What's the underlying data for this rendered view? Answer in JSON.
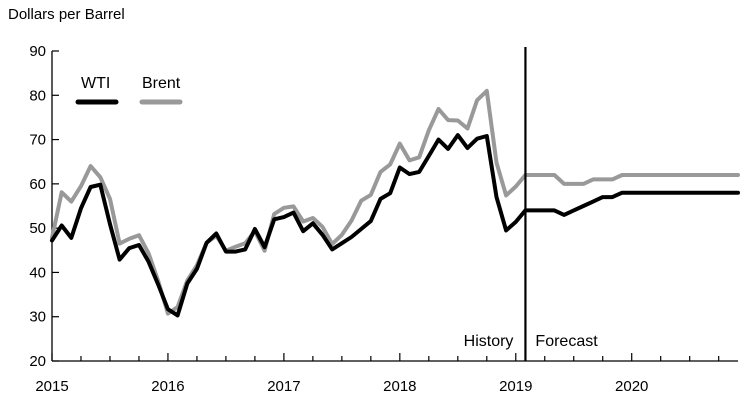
{
  "chart_data": {
    "type": "line",
    "title": "",
    "ylabel": "Dollars per Barrel",
    "xlabel": "",
    "ylim": [
      20,
      90
    ],
    "yticks": [
      20,
      30,
      40,
      50,
      60,
      70,
      80,
      90
    ],
    "xlim": [
      "2015-01",
      "2020-12"
    ],
    "xtick_labels": [
      "2015",
      "2016",
      "2017",
      "2018",
      "2019",
      "2020"
    ],
    "grid": false,
    "legend": {
      "placement": "top-left"
    },
    "divider": {
      "date": "2019-02",
      "left_label": "History",
      "right_label": "Forecast"
    },
    "series": [
      {
        "name": "WTI",
        "color": "#000000",
        "values": [
          {
            "x": "2015-01",
            "y": 47.2
          },
          {
            "x": "2015-02",
            "y": 50.6
          },
          {
            "x": "2015-03",
            "y": 47.8
          },
          {
            "x": "2015-04",
            "y": 54.5
          },
          {
            "x": "2015-05",
            "y": 59.3
          },
          {
            "x": "2015-06",
            "y": 59.8
          },
          {
            "x": "2015-07",
            "y": 50.9
          },
          {
            "x": "2015-08",
            "y": 42.9
          },
          {
            "x": "2015-09",
            "y": 45.5
          },
          {
            "x": "2015-10",
            "y": 46.2
          },
          {
            "x": "2015-11",
            "y": 42.4
          },
          {
            "x": "2015-12",
            "y": 37.2
          },
          {
            "x": "2016-01",
            "y": 31.7
          },
          {
            "x": "2016-02",
            "y": 30.3
          },
          {
            "x": "2016-03",
            "y": 37.5
          },
          {
            "x": "2016-04",
            "y": 40.8
          },
          {
            "x": "2016-05",
            "y": 46.7
          },
          {
            "x": "2016-06",
            "y": 48.8
          },
          {
            "x": "2016-07",
            "y": 44.7
          },
          {
            "x": "2016-08",
            "y": 44.7
          },
          {
            "x": "2016-09",
            "y": 45.2
          },
          {
            "x": "2016-10",
            "y": 49.8
          },
          {
            "x": "2016-11",
            "y": 45.7
          },
          {
            "x": "2016-12",
            "y": 52.0
          },
          {
            "x": "2017-01",
            "y": 52.5
          },
          {
            "x": "2017-02",
            "y": 53.5
          },
          {
            "x": "2017-03",
            "y": 49.3
          },
          {
            "x": "2017-04",
            "y": 51.1
          },
          {
            "x": "2017-05",
            "y": 48.5
          },
          {
            "x": "2017-06",
            "y": 45.2
          },
          {
            "x": "2017-07",
            "y": 46.6
          },
          {
            "x": "2017-08",
            "y": 48.0
          },
          {
            "x": "2017-09",
            "y": 49.8
          },
          {
            "x": "2017-10",
            "y": 51.6
          },
          {
            "x": "2017-11",
            "y": 56.6
          },
          {
            "x": "2017-12",
            "y": 57.9
          },
          {
            "x": "2018-01",
            "y": 63.7
          },
          {
            "x": "2018-02",
            "y": 62.2
          },
          {
            "x": "2018-03",
            "y": 62.7
          },
          {
            "x": "2018-04",
            "y": 66.3
          },
          {
            "x": "2018-05",
            "y": 70.0
          },
          {
            "x": "2018-06",
            "y": 67.9
          },
          {
            "x": "2018-07",
            "y": 71.0
          },
          {
            "x": "2018-08",
            "y": 68.1
          },
          {
            "x": "2018-09",
            "y": 70.2
          },
          {
            "x": "2018-10",
            "y": 70.8
          },
          {
            "x": "2018-11",
            "y": 57.0
          },
          {
            "x": "2018-12",
            "y": 49.5
          },
          {
            "x": "2019-01",
            "y": 51.4
          },
          {
            "x": "2019-02",
            "y": 54.0
          },
          {
            "x": "2019-03",
            "y": 54.0
          },
          {
            "x": "2019-04",
            "y": 54.0
          },
          {
            "x": "2019-05",
            "y": 54.0
          },
          {
            "x": "2019-06",
            "y": 53.0
          },
          {
            "x": "2019-07",
            "y": 54.0
          },
          {
            "x": "2019-08",
            "y": 55.0
          },
          {
            "x": "2019-09",
            "y": 56.0
          },
          {
            "x": "2019-10",
            "y": 57.0
          },
          {
            "x": "2019-11",
            "y": 57.0
          },
          {
            "x": "2019-12",
            "y": 58.0
          },
          {
            "x": "2020-01",
            "y": 58.0
          },
          {
            "x": "2020-02",
            "y": 58.0
          },
          {
            "x": "2020-03",
            "y": 58.0
          },
          {
            "x": "2020-04",
            "y": 58.0
          },
          {
            "x": "2020-05",
            "y": 58.0
          },
          {
            "x": "2020-06",
            "y": 58.0
          },
          {
            "x": "2020-07",
            "y": 58.0
          },
          {
            "x": "2020-08",
            "y": 58.0
          },
          {
            "x": "2020-09",
            "y": 58.0
          },
          {
            "x": "2020-10",
            "y": 58.0
          },
          {
            "x": "2020-11",
            "y": 58.0
          },
          {
            "x": "2020-12",
            "y": 58.0
          }
        ]
      },
      {
        "name": "Brent",
        "color": "#999999",
        "values": [
          {
            "x": "2015-01",
            "y": 47.8
          },
          {
            "x": "2015-02",
            "y": 58.1
          },
          {
            "x": "2015-03",
            "y": 56.0
          },
          {
            "x": "2015-04",
            "y": 59.5
          },
          {
            "x": "2015-05",
            "y": 64.0
          },
          {
            "x": "2015-06",
            "y": 61.5
          },
          {
            "x": "2015-07",
            "y": 56.6
          },
          {
            "x": "2015-08",
            "y": 46.5
          },
          {
            "x": "2015-09",
            "y": 47.6
          },
          {
            "x": "2015-10",
            "y": 48.4
          },
          {
            "x": "2015-11",
            "y": 44.3
          },
          {
            "x": "2015-12",
            "y": 38.0
          },
          {
            "x": "2016-01",
            "y": 30.7
          },
          {
            "x": "2016-02",
            "y": 32.2
          },
          {
            "x": "2016-03",
            "y": 38.2
          },
          {
            "x": "2016-04",
            "y": 41.6
          },
          {
            "x": "2016-05",
            "y": 46.7
          },
          {
            "x": "2016-06",
            "y": 48.3
          },
          {
            "x": "2016-07",
            "y": 44.9
          },
          {
            "x": "2016-08",
            "y": 45.8
          },
          {
            "x": "2016-09",
            "y": 46.6
          },
          {
            "x": "2016-10",
            "y": 49.3
          },
          {
            "x": "2016-11",
            "y": 44.9
          },
          {
            "x": "2016-12",
            "y": 53.2
          },
          {
            "x": "2017-01",
            "y": 54.6
          },
          {
            "x": "2017-02",
            "y": 54.9
          },
          {
            "x": "2017-03",
            "y": 51.5
          },
          {
            "x": "2017-04",
            "y": 52.3
          },
          {
            "x": "2017-05",
            "y": 50.3
          },
          {
            "x": "2017-06",
            "y": 46.4
          },
          {
            "x": "2017-07",
            "y": 48.5
          },
          {
            "x": "2017-08",
            "y": 51.7
          },
          {
            "x": "2017-09",
            "y": 56.2
          },
          {
            "x": "2017-10",
            "y": 57.5
          },
          {
            "x": "2017-11",
            "y": 62.7
          },
          {
            "x": "2017-12",
            "y": 64.4
          },
          {
            "x": "2018-01",
            "y": 69.1
          },
          {
            "x": "2018-02",
            "y": 65.3
          },
          {
            "x": "2018-03",
            "y": 66.0
          },
          {
            "x": "2018-04",
            "y": 72.1
          },
          {
            "x": "2018-05",
            "y": 76.9
          },
          {
            "x": "2018-06",
            "y": 74.4
          },
          {
            "x": "2018-07",
            "y": 74.3
          },
          {
            "x": "2018-08",
            "y": 72.5
          },
          {
            "x": "2018-09",
            "y": 78.9
          },
          {
            "x": "2018-10",
            "y": 81.0
          },
          {
            "x": "2018-11",
            "y": 64.8
          },
          {
            "x": "2018-12",
            "y": 57.4
          },
          {
            "x": "2019-01",
            "y": 59.4
          },
          {
            "x": "2019-02",
            "y": 62.0
          },
          {
            "x": "2019-03",
            "y": 62.0
          },
          {
            "x": "2019-04",
            "y": 62.0
          },
          {
            "x": "2019-05",
            "y": 62.0
          },
          {
            "x": "2019-06",
            "y": 60.0
          },
          {
            "x": "2019-07",
            "y": 60.0
          },
          {
            "x": "2019-08",
            "y": 60.0
          },
          {
            "x": "2019-09",
            "y": 61.0
          },
          {
            "x": "2019-10",
            "y": 61.0
          },
          {
            "x": "2019-11",
            "y": 61.0
          },
          {
            "x": "2019-12",
            "y": 62.0
          },
          {
            "x": "2020-01",
            "y": 62.0
          },
          {
            "x": "2020-02",
            "y": 62.0
          },
          {
            "x": "2020-03",
            "y": 62.0
          },
          {
            "x": "2020-04",
            "y": 62.0
          },
          {
            "x": "2020-05",
            "y": 62.0
          },
          {
            "x": "2020-06",
            "y": 62.0
          },
          {
            "x": "2020-07",
            "y": 62.0
          },
          {
            "x": "2020-08",
            "y": 62.0
          },
          {
            "x": "2020-09",
            "y": 62.0
          },
          {
            "x": "2020-10",
            "y": 62.0
          },
          {
            "x": "2020-11",
            "y": 62.0
          },
          {
            "x": "2020-12",
            "y": 62.0
          }
        ]
      }
    ]
  }
}
